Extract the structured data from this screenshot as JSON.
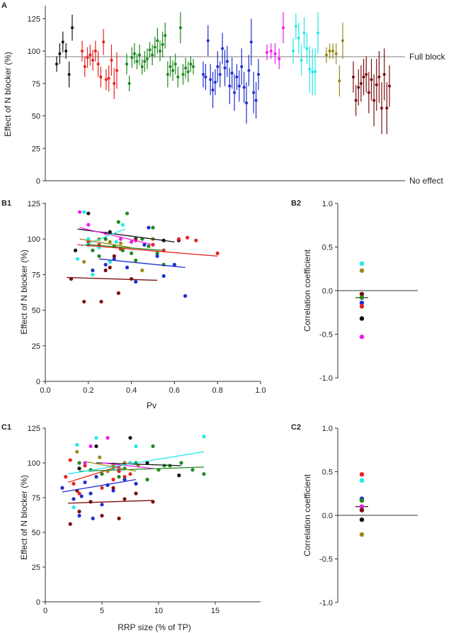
{
  "colors": {
    "black": "#111111",
    "red": "#e8231f",
    "green": "#1e8a1e",
    "blue": "#1f2ed0",
    "magenta": "#ee1cee",
    "cyan": "#22eaea",
    "olive": "#9a8a18",
    "maroon": "#7b0e0e"
  },
  "chart_data": [
    {
      "id": "A",
      "type": "scatter",
      "panel_label": "A",
      "ylabel": "Effect of N blocker (%)",
      "ylim": [
        0,
        135
      ],
      "yticks": [
        0,
        25,
        50,
        75,
        100,
        125
      ],
      "reference_lines": [
        {
          "y": 100,
          "label": "Full block"
        },
        {
          "y": 0,
          "label": "No effect"
        }
      ],
      "series": [
        {
          "color": "black",
          "values": [
            90,
            98,
            107,
            100,
            82,
            118
          ],
          "errors": [
            6,
            8,
            8,
            6,
            10,
            10
          ]
        },
        {
          "color": "red",
          "values": [
            100,
            88,
            95,
            97,
            93,
            100,
            90,
            80,
            107,
            78,
            79,
            93,
            75,
            85
          ],
          "errors": [
            8,
            8,
            8,
            8,
            8,
            8,
            10,
            8,
            10,
            8,
            10,
            12,
            12,
            14
          ]
        },
        {
          "color": "green",
          "values": [
            90,
            75,
            95,
            98,
            92,
            97,
            88,
            92,
            94,
            101,
            97,
            103,
            108,
            100,
            105,
            112,
            82,
            88,
            85,
            90,
            80,
            118,
            82,
            87,
            84,
            90,
            88
          ],
          "errors": [
            8,
            6,
            8,
            8,
            6,
            8,
            6,
            8,
            8,
            6,
            8,
            8,
            10,
            8,
            10,
            10,
            10,
            8,
            8,
            8,
            8,
            12,
            8,
            8,
            8,
            6,
            6
          ]
        },
        {
          "color": "blue",
          "values": [
            82,
            80,
            108,
            78,
            70,
            76,
            88,
            82,
            102,
            87,
            92,
            73,
            83,
            68,
            80,
            73,
            88,
            72,
            60,
            85,
            107,
            68,
            62,
            82
          ],
          "errors": [
            10,
            10,
            12,
            12,
            14,
            10,
            12,
            10,
            12,
            14,
            12,
            14,
            12,
            14,
            10,
            12,
            14,
            12,
            16,
            12,
            18,
            16,
            14,
            12
          ]
        },
        {
          "color": "magenta",
          "values": [
            99,
            100,
            98,
            94,
            118
          ],
          "errors": [
            6,
            6,
            8,
            8,
            12
          ]
        },
        {
          "color": "cyan",
          "values": [
            100,
            119,
            110,
            93,
            114,
            102,
            86,
            84,
            84,
            114
          ],
          "errors": [
            10,
            10,
            12,
            12,
            12,
            12,
            18,
            18,
            18,
            16
          ]
        },
        {
          "color": "olive",
          "values": [
            97,
            100,
            100,
            98,
            77,
            108
          ],
          "errors": [
            6,
            6,
            6,
            8,
            12,
            14
          ]
        },
        {
          "color": "maroon",
          "values": [
            80,
            62,
            72,
            75,
            80,
            82,
            68,
            78,
            62,
            74,
            80,
            56,
            82,
            56,
            73
          ],
          "errors": [
            12,
            12,
            14,
            14,
            14,
            14,
            16,
            16,
            20,
            20,
            20,
            20,
            20,
            20,
            16
          ]
        }
      ]
    },
    {
      "id": "B1",
      "type": "scatter",
      "panel_label": "B1",
      "xlabel": "Pv",
      "ylabel": "Effect of N blocker (%)",
      "xlim": [
        0,
        1.0
      ],
      "xticks": [
        0,
        0.2,
        0.4,
        0.6,
        0.8,
        1.0
      ],
      "xtick_labels": [
        "0.0",
        "0.2",
        "0.4",
        "0.6",
        "0.8",
        "1.0"
      ],
      "ylim": [
        0,
        125
      ],
      "yticks": [
        0,
        25,
        50,
        75,
        100,
        125
      ],
      "series": [
        {
          "color": "black",
          "x": [
            0.14,
            0.2,
            0.3,
            0.42,
            0.55,
            0.62
          ],
          "y": [
            92,
            118,
            105,
            100,
            99,
            99
          ],
          "fit": [
            [
              0.15,
              107
            ],
            [
              0.6,
              98
            ]
          ]
        },
        {
          "color": "red",
          "x": [
            0.2,
            0.25,
            0.28,
            0.35,
            0.42,
            0.5,
            0.55,
            0.62,
            0.66,
            0.7,
            0.8
          ],
          "y": [
            98,
            96,
            100,
            93,
            99,
            96,
            92,
            100,
            101,
            99,
            90
          ],
          "fit": [
            [
              0.15,
              96
            ],
            [
              0.8,
              88
            ]
          ]
        },
        {
          "color": "green",
          "x": [
            0.2,
            0.22,
            0.25,
            0.28,
            0.3,
            0.32,
            0.34,
            0.36,
            0.38,
            0.4,
            0.42,
            0.45,
            0.48,
            0.5,
            0.52,
            0.55
          ],
          "y": [
            96,
            92,
            88,
            100,
            84,
            95,
            112,
            92,
            118,
            90,
            85,
            100,
            95,
            108,
            90,
            82
          ],
          "fit": [
            [
              0.2,
              96
            ],
            [
              0.55,
              92
            ]
          ]
        },
        {
          "color": "blue",
          "x": [
            0.22,
            0.28,
            0.32,
            0.38,
            0.42,
            0.46,
            0.5,
            0.55,
            0.6,
            0.65,
            0.48,
            0.52
          ],
          "y": [
            78,
            82,
            86,
            80,
            70,
            96,
            100,
            74,
            82,
            60,
            108,
            88
          ],
          "fit": [
            [
              0.25,
              86
            ],
            [
              0.65,
              80
            ]
          ]
        },
        {
          "color": "magenta",
          "x": [
            0.16,
            0.2,
            0.28,
            0.35,
            0.4
          ],
          "y": [
            119,
            110,
            104,
            100,
            98
          ],
          "fit": [
            [
              0.16,
              108
            ],
            [
              0.5,
              96
            ]
          ]
        },
        {
          "color": "cyan",
          "x": [
            0.15,
            0.18,
            0.2,
            0.22,
            0.25,
            0.3,
            0.33,
            0.36
          ],
          "y": [
            86,
            119,
            100,
            75,
            94,
            84,
            98,
            110
          ],
          "fit": [
            [
              0.17,
              95
            ],
            [
              0.37,
              107
            ]
          ]
        },
        {
          "color": "olive",
          "x": [
            0.18,
            0.25,
            0.3,
            0.35,
            0.45,
            0.5
          ],
          "y": [
            84,
            100,
            98,
            97,
            78,
            100
          ],
          "fit": [
            [
              0.16,
              100
            ],
            [
              0.4,
              94
            ]
          ]
        },
        {
          "color": "maroon",
          "x": [
            0.12,
            0.18,
            0.26,
            0.3,
            0.34,
            0.4,
            0.28,
            0.32
          ],
          "y": [
            72,
            56,
            56,
            80,
            62,
            72,
            78,
            88
          ],
          "fit": [
            [
              0.1,
              73
            ],
            [
              0.52,
              71
            ]
          ]
        }
      ]
    },
    {
      "id": "B2",
      "type": "scatter",
      "panel_label": "B2",
      "ylabel": "Correlation coefficient",
      "ylim": [
        -1.0,
        1.0
      ],
      "yticks": [
        -1.0,
        -0.5,
        0.0,
        0.5,
        1.0
      ],
      "ytick_labels": [
        "-1.0",
        "-0.5",
        "0.0",
        "0.5",
        "1.0"
      ],
      "mean": -0.08,
      "points": [
        {
          "color": "cyan",
          "value": 0.31
        },
        {
          "color": "olive",
          "value": 0.23
        },
        {
          "color": "maroon",
          "value": -0.04
        },
        {
          "color": "green",
          "value": -0.08
        },
        {
          "color": "blue",
          "value": -0.14
        },
        {
          "color": "red",
          "value": -0.18
        },
        {
          "color": "black",
          "value": -0.32
        },
        {
          "color": "magenta",
          "value": -0.53
        }
      ]
    },
    {
      "id": "C1",
      "type": "scatter",
      "panel_label": "C1",
      "xlabel": "RRP size (% of TP)",
      "ylabel": "Effect of N blocker (%)",
      "xlim": [
        0,
        19
      ],
      "xticks": [
        0,
        5,
        10,
        15
      ],
      "xtick_labels": [
        "0",
        "5",
        "10",
        "15"
      ],
      "ylim": [
        0,
        125
      ],
      "yticks": [
        0,
        25,
        50,
        75,
        100,
        125
      ],
      "series": [
        {
          "color": "black",
          "x": [
            4.5,
            7.5,
            9.0,
            11.8,
            3.0
          ],
          "y": [
            112,
            118,
            100,
            91,
            96
          ],
          "fit": [
            [
              4.5,
              100
            ],
            [
              12,
              98
            ]
          ]
        },
        {
          "color": "red",
          "x": [
            1.8,
            2.2,
            3.0,
            4.0,
            5.0,
            6.0,
            7.0,
            7.5,
            2.5,
            3.5,
            6.5
          ],
          "y": [
            90,
            102,
            78,
            95,
            82,
            88,
            90,
            92,
            85,
            98,
            94
          ],
          "fit": [
            [
              2,
              86
            ],
            [
              7.5,
              100
            ]
          ]
        },
        {
          "color": "green",
          "x": [
            3.0,
            4.0,
            5.0,
            6.0,
            6.5,
            7.0,
            8.0,
            9.0,
            10.0,
            11.0,
            12.0,
            13.0,
            14.0,
            9.5,
            10.5
          ],
          "y": [
            100,
            95,
            92,
            98,
            90,
            96,
            100,
            88,
            95,
            98,
            100,
            95,
            92,
            112,
            98
          ],
          "fit": [
            [
              3,
              94
            ],
            [
              14,
              97
            ]
          ]
        },
        {
          "color": "blue",
          "x": [
            1.5,
            2.5,
            3.0,
            3.5,
            4.0,
            4.5,
            5.0,
            5.5,
            6.0,
            7.0,
            8.0,
            4.2,
            3.2
          ],
          "y": [
            82,
            74,
            62,
            86,
            78,
            90,
            70,
            84,
            80,
            88,
            85,
            60,
            76
          ],
          "fit": [
            [
              1.5,
              79
            ],
            [
              8,
              88
            ]
          ]
        },
        {
          "color": "magenta",
          "x": [
            3.5,
            5.5,
            6.5,
            7.0,
            4.0
          ],
          "y": [
            100,
            118,
            96,
            100,
            112
          ],
          "fit": [
            [
              5,
              100
            ],
            [
              9.5,
              96
            ]
          ]
        },
        {
          "color": "cyan",
          "x": [
            2.8,
            4.5,
            6.0,
            7.5,
            8.0,
            14.0,
            2.5
          ],
          "y": [
            113,
            118,
            96,
            100,
            112,
            119,
            68
          ],
          "fit": [
            [
              2,
              92
            ],
            [
              14,
              108
            ]
          ]
        },
        {
          "color": "olive",
          "x": [
            2.8,
            4.8,
            5.5,
            6.0,
            7.0,
            8.2
          ],
          "y": [
            108,
            104,
            94,
            99,
            100,
            98
          ],
          "fit": [
            [
              3.5,
              101
            ],
            [
              8,
              94
            ]
          ]
        },
        {
          "color": "maroon",
          "x": [
            2.2,
            3.0,
            4.0,
            5.0,
            6.0,
            7.0,
            8.0,
            9.5,
            2.8,
            6.5
          ],
          "y": [
            56,
            65,
            72,
            62,
            82,
            74,
            78,
            72,
            80,
            60
          ],
          "fit": [
            [
              2,
              71
            ],
            [
              9.5,
              73
            ]
          ]
        }
      ]
    },
    {
      "id": "C2",
      "type": "scatter",
      "panel_label": "C2",
      "ylabel": "Correlation coefficient",
      "ylim": [
        -1.0,
        1.0
      ],
      "yticks": [
        -1.0,
        -0.5,
        0.0,
        0.5,
        1.0
      ],
      "ytick_labels": [
        "-1.0",
        "-0.5",
        "0.0",
        "0.5",
        "1.0"
      ],
      "mean": 0.1,
      "points": [
        {
          "color": "red",
          "value": 0.47
        },
        {
          "color": "cyan",
          "value": 0.4
        },
        {
          "color": "blue",
          "value": 0.19
        },
        {
          "color": "green",
          "value": 0.17
        },
        {
          "color": "magenta",
          "value": 0.1
        },
        {
          "color": "maroon",
          "value": 0.06
        },
        {
          "color": "black",
          "value": -0.05
        },
        {
          "color": "olive",
          "value": -0.22
        }
      ]
    }
  ]
}
